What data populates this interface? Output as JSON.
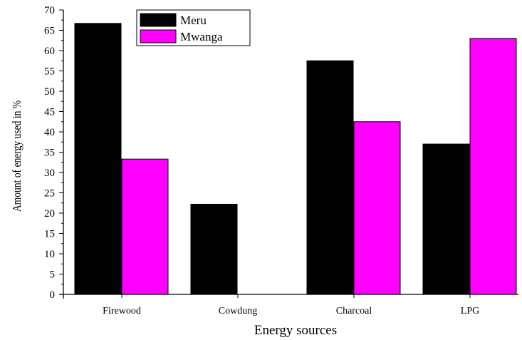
{
  "chart_data": {
    "type": "bar",
    "title": "",
    "xlabel": "Energy sources",
    "ylabel": "Amount of energy used in %",
    "categories": [
      "Firewood",
      "Cowdung",
      "Charcoal",
      "LPG"
    ],
    "series": [
      {
        "name": "Meru",
        "values": [
          66.7,
          22.2,
          57.5,
          37.0
        ],
        "color": "#000000"
      },
      {
        "name": "Mwanga",
        "values": [
          33.3,
          0,
          42.5,
          63.0
        ],
        "color": "#ff00ff"
      }
    ],
    "ylim": [
      0,
      70
    ],
    "yticks": [
      0,
      5,
      10,
      15,
      20,
      25,
      30,
      35,
      40,
      45,
      50,
      55,
      60,
      65,
      70
    ],
    "grid": false,
    "legend_position": "top-left"
  }
}
